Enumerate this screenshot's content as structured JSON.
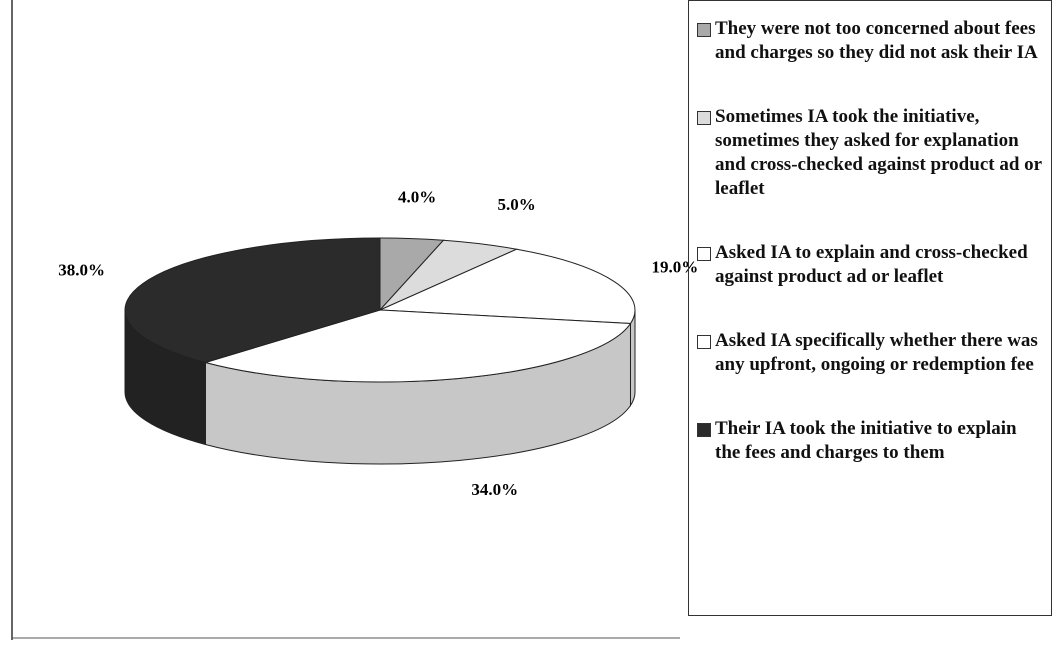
{
  "chart_data": {
    "type": "pie3d",
    "categories": [
      "They were not too concerned about fees and charges so they did not ask their IA",
      "Sometimes IA took the initiative, sometimes they asked for explanation and cross-checked against product ad or leaflet",
      "Asked IA to explain and cross-checked against product ad or leaflet",
      "Asked IA specifically whether there was any upfront, ongoing or redemption fee",
      "Their IA took the initiative to explain the fees and charges to them"
    ],
    "values": [
      4,
      5,
      19,
      34,
      38
    ],
    "value_labels": [
      "4.0%",
      "5.0%",
      "19.0%",
      "34.0%",
      "38.0%"
    ],
    "colors": [
      "#a9a9a9",
      "#dcdcdc",
      "#ffffff",
      "#ffffff",
      "#2b2b2b"
    ],
    "legend": "right"
  }
}
